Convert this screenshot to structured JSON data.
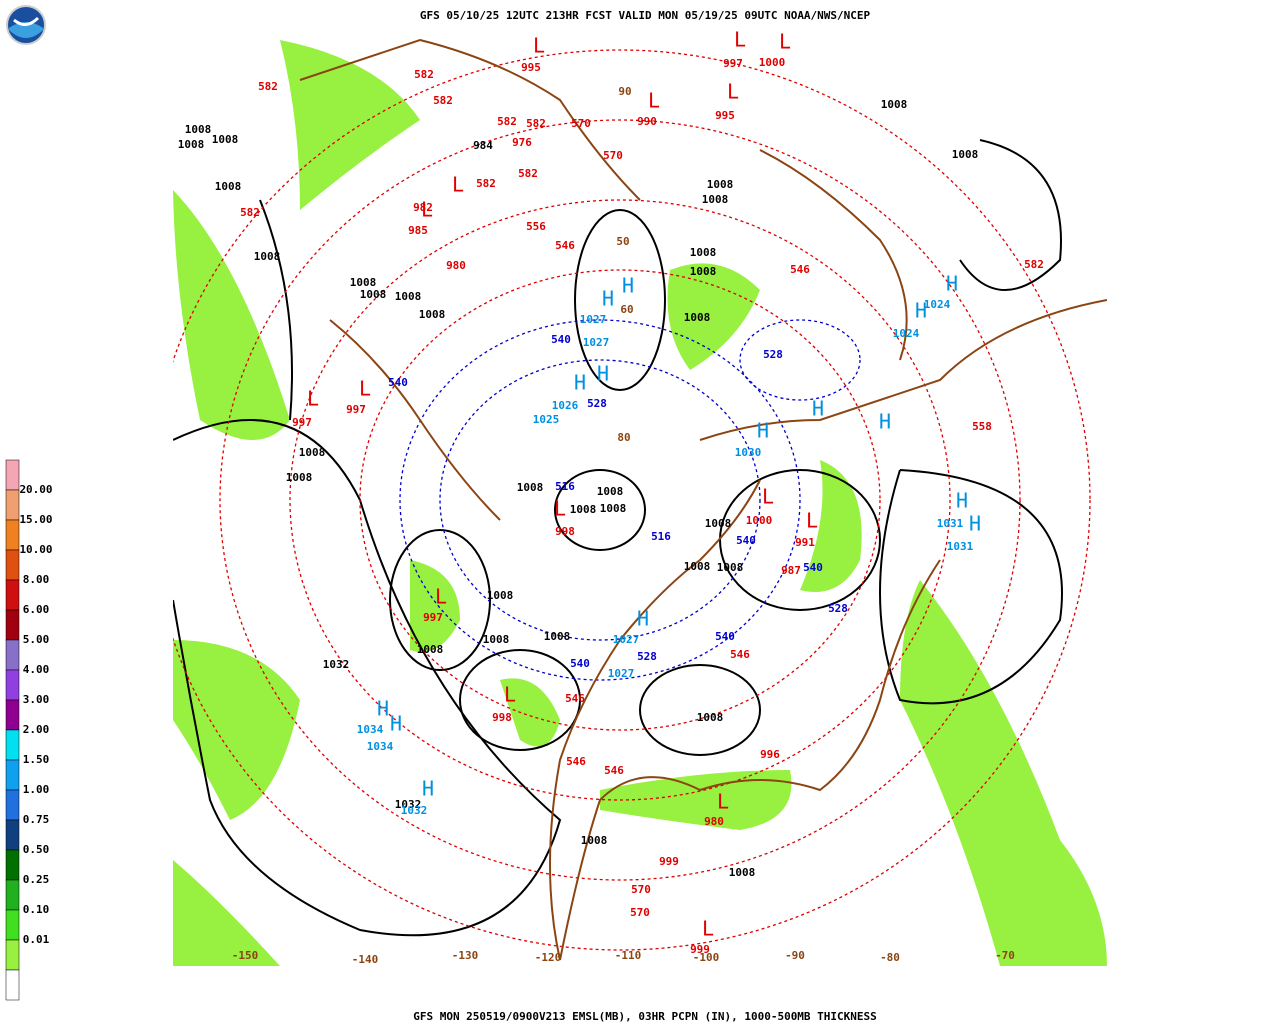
{
  "header": "GFS 05/10/25 12UTC 213HR FCST VALID MON 05/19/25 09UTC NOAA/NWS/NCEP",
  "footer": "GFS MON 250519/0900V213 EMSL(MB), 03HR PCPN (IN), 1000-500MB THICKNESS",
  "legend": {
    "labels": [
      "20.00",
      "15.00",
      "10.00",
      "8.00",
      "6.00",
      "5.00",
      "4.00",
      "3.00",
      "2.00",
      "1.50",
      "1.00",
      "0.75",
      "0.50",
      "0.25",
      "0.10",
      "0.01"
    ],
    "colors": [
      "#f4a6b4",
      "#f0a070",
      "#f08020",
      "#e05010",
      "#d01010",
      "#a00010",
      "#8870c8",
      "#9040e0",
      "#900090",
      "#00e0f0",
      "#10a0f0",
      "#2070e0",
      "#104080",
      "#007000",
      "#20b020",
      "#40e020",
      "#98f040",
      "#ffffff"
    ]
  },
  "longitudes": [
    "-150",
    "-140",
    "-130",
    "-120",
    "-110",
    "-100",
    "-90",
    "-80",
    "-70"
  ],
  "latitudes": [
    "90",
    "50",
    "60",
    "80"
  ],
  "isobars": [
    "1008",
    "1008",
    "1008",
    "1008",
    "1008",
    "1008",
    "1008",
    "1008",
    "1008",
    "1008",
    "1008",
    "1008",
    "1008",
    "1008",
    "1008",
    "1008",
    "1008",
    "1008",
    "1008",
    "1008",
    "1008",
    "1008",
    "1008",
    "1008",
    "1008",
    "1008",
    "1008",
    "1008",
    "1032",
    "1032",
    "1008",
    "1008",
    "1008",
    "1008",
    "984"
  ],
  "red_labels": [
    "995",
    "997",
    "1000",
    "990",
    "995",
    "976",
    "582",
    "582",
    "582",
    "582",
    "582",
    "570",
    "570",
    "582",
    "582",
    "982",
    "985",
    "556",
    "546",
    "980",
    "582",
    "997",
    "997",
    "546",
    "582",
    "558",
    "998",
    "1000",
    "991",
    "987",
    "997",
    "546",
    "998",
    "546",
    "546",
    "546",
    "996",
    "980",
    "999",
    "570",
    "570",
    "999"
  ],
  "high_values": [
    "1027",
    "1027",
    "1025",
    "1026",
    "1030",
    "1024",
    "1024",
    "1031",
    "1031",
    "1034",
    "1034",
    "1032",
    "1027",
    "1027"
  ],
  "thickness_blue": [
    "540",
    "540",
    "528",
    "516",
    "516",
    "540",
    "540",
    "528",
    "540",
    "528",
    "540",
    "528"
  ],
  "high_markers": [
    "H",
    "H",
    "H",
    "H",
    "H",
    "H",
    "H",
    "H",
    "H",
    "H",
    "H",
    "H",
    "H",
    "H",
    "H"
  ],
  "low_markers": [
    "L",
    "L",
    "L",
    "L",
    "L",
    "L",
    "L",
    "L",
    "L",
    "L",
    "L",
    "L",
    "L",
    "L",
    "L",
    "L"
  ]
}
